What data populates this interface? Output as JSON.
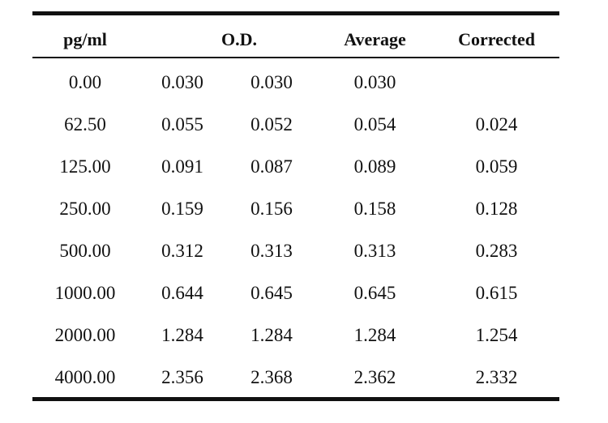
{
  "table": {
    "headers": {
      "concentration": "pg/ml",
      "od": "O.D.",
      "average": "Average",
      "corrected": "Corrected"
    },
    "rows": [
      {
        "conc": "0.00",
        "od1": "0.030",
        "od2": "0.030",
        "avg": "0.030",
        "corr": ""
      },
      {
        "conc": "62.50",
        "od1": "0.055",
        "od2": "0.052",
        "avg": "0.054",
        "corr": "0.024"
      },
      {
        "conc": "125.00",
        "od1": "0.091",
        "od2": "0.087",
        "avg": "0.089",
        "corr": "0.059"
      },
      {
        "conc": "250.00",
        "od1": "0.159",
        "od2": "0.156",
        "avg": "0.158",
        "corr": "0.128"
      },
      {
        "conc": "500.00",
        "od1": "0.312",
        "od2": "0.313",
        "avg": "0.313",
        "corr": "0.283"
      },
      {
        "conc": "1000.00",
        "od1": "0.644",
        "od2": "0.645",
        "avg": "0.645",
        "corr": "0.615"
      },
      {
        "conc": "2000.00",
        "od1": "1.284",
        "od2": "1.284",
        "avg": "1.284",
        "corr": "1.254"
      },
      {
        "conc": "4000.00",
        "od1": "2.356",
        "od2": "2.368",
        "avg": "2.362",
        "corr": "2.332"
      }
    ]
  }
}
